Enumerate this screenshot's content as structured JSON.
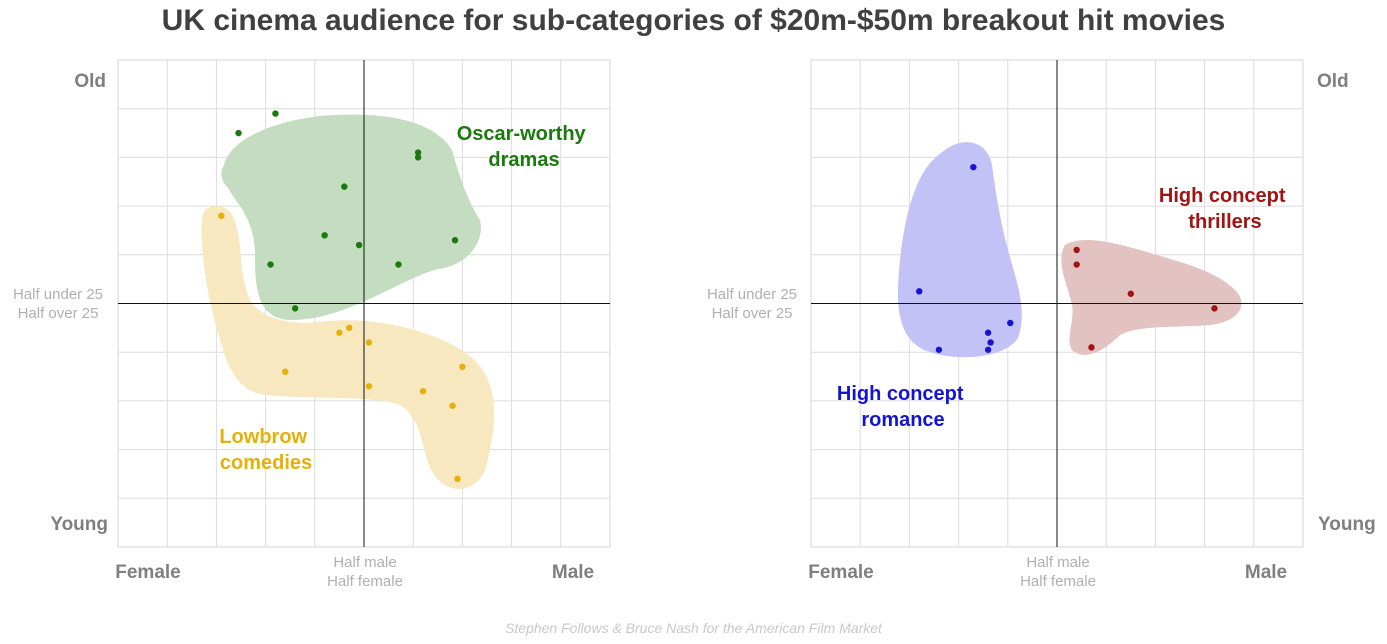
{
  "title": "UK cinema audience for sub-categories of $20m-$50m breakout hit movies",
  "credit": "Stephen Follows & Bruce Nash for the American Film Market",
  "chart_data": [
    {
      "type": "scatter",
      "xlim": [
        -5,
        5
      ],
      "ylim": [
        -5,
        5
      ],
      "grid": true,
      "axis_text": {
        "top": "Old",
        "bottom": "Young",
        "left": "Female",
        "right": "Male",
        "center_y": [
          "Half under 25",
          "Half over 25"
        ],
        "center_x": [
          "Half male",
          "Half female"
        ]
      },
      "series": [
        {
          "name": "Oscar-worthy dramas",
          "label_lines": [
            "Oscar-worthy",
            "dramas"
          ],
          "color": "#1a7a0e",
          "fill": "#c4dcbf",
          "x": [
            -2.55,
            -1.8,
            -0.4,
            1.1,
            1.1,
            -0.8,
            -0.1,
            1.85,
            -1.9,
            0.7,
            -1.4
          ],
          "y": [
            3.5,
            3.9,
            2.4,
            3.0,
            3.1,
            1.4,
            1.2,
            1.3,
            0.8,
            0.8,
            -0.1
          ]
        },
        {
          "name": "Lowbrow comedies",
          "label_lines": [
            "Lowbrow",
            "comedies"
          ],
          "color": "#e6b00a",
          "fill": "#f7e8bf",
          "x": [
            -2.9,
            -0.5,
            -0.3,
            0.1,
            -1.6,
            0.1,
            2.0,
            1.2,
            1.8,
            1.9
          ],
          "y": [
            1.8,
            -0.6,
            -0.5,
            -0.8,
            -1.4,
            -1.7,
            -1.3,
            -1.8,
            -2.1,
            -3.6
          ]
        },
        {
          "name": "High concept romance",
          "label_lines": [
            "High concept",
            "romance"
          ],
          "color": "#1414d2",
          "fill": "#c2c2f7",
          "x": [
            -1.7,
            -2.8,
            -0.95,
            -1.4,
            -1.35,
            -2.4,
            -1.4
          ],
          "y": [
            2.8,
            0.25,
            -0.4,
            -0.6,
            -0.8,
            -0.95,
            -0.95
          ]
        },
        {
          "name": "High concept thrillers",
          "label_lines": [
            "High concept",
            "thrillers"
          ],
          "color": "#a01414",
          "fill": "#e3c2c2",
          "x": [
            0.4,
            0.4,
            1.5,
            3.2,
            0.7
          ],
          "y": [
            1.1,
            0.8,
            0.2,
            -0.1,
            -0.9
          ]
        }
      ]
    }
  ]
}
